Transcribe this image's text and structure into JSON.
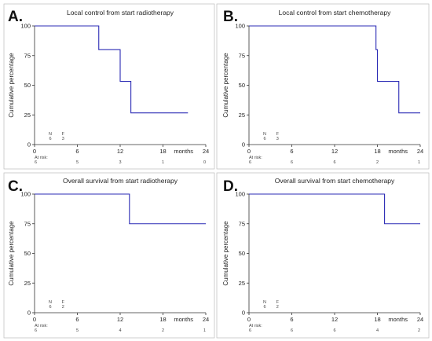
{
  "chart_data": [
    {
      "type": "line",
      "panel": "A.",
      "title": "Local control from start radiotherapy",
      "ylabel": "Cumulative percentage",
      "xunit": "months",
      "xlim": [
        0,
        24
      ],
      "ylim": [
        0,
        100
      ],
      "xticks": [
        "0",
        "6",
        "12",
        "18",
        "24"
      ],
      "yticks": [
        "0",
        "25",
        "50",
        "75",
        "100"
      ],
      "series": [
        {
          "step": true,
          "x": [
            0,
            9,
            12,
            13.5,
            21.5
          ],
          "y": [
            100,
            80,
            53.3,
            26.7,
            26.7
          ]
        }
      ],
      "legend_n": {
        "n_label": "N",
        "f_label": "F",
        "n": "6",
        "f": "3"
      },
      "at_risk": {
        "label": "At risk:",
        "values": [
          "6",
          "5",
          "3",
          "1",
          "0"
        ]
      }
    },
    {
      "type": "line",
      "panel": "B.",
      "title": "Local control from start chemotherapy",
      "ylabel": "Cumulative percentage",
      "xunit": "months",
      "xlim": [
        0,
        24
      ],
      "ylim": [
        0,
        100
      ],
      "xticks": [
        "0",
        "6",
        "12",
        "18",
        "24"
      ],
      "yticks": [
        "0",
        "25",
        "50",
        "75",
        "100"
      ],
      "series": [
        {
          "step": true,
          "x": [
            0,
            17.8,
            18,
            21,
            24
          ],
          "y": [
            100,
            80,
            53.3,
            26.7,
            26.7
          ]
        }
      ],
      "legend_n": {
        "n_label": "N",
        "f_label": "F",
        "n": "6",
        "f": "3"
      },
      "at_risk": {
        "label": "At risk:",
        "values": [
          "6",
          "6",
          "6",
          "2",
          "1"
        ]
      }
    },
    {
      "type": "line",
      "panel": "C.",
      "title": "Overall survival from start radiotherapy",
      "ylabel": "Cumulative percentage",
      "xunit": "months",
      "xlim": [
        0,
        24
      ],
      "ylim": [
        0,
        100
      ],
      "xticks": [
        "0",
        "6",
        "12",
        "18",
        "24"
      ],
      "yticks": [
        "0",
        "25",
        "50",
        "75",
        "100"
      ],
      "series": [
        {
          "step": true,
          "x": [
            0,
            13.3,
            24
          ],
          "y": [
            100,
            75,
            75
          ]
        }
      ],
      "legend_n": {
        "n_label": "N",
        "f_label": "F",
        "n": "6",
        "f": "2"
      },
      "at_risk": {
        "label": "At risk:",
        "values": [
          "6",
          "5",
          "4",
          "2",
          "1"
        ]
      }
    },
    {
      "type": "line",
      "panel": "D.",
      "title": "Overall survival from start chemotherapy",
      "ylabel": "Cumulative percentage",
      "xunit": "months",
      "xlim": [
        0,
        24
      ],
      "ylim": [
        0,
        100
      ],
      "xticks": [
        "0",
        "6",
        "12",
        "18",
        "24"
      ],
      "yticks": [
        "0",
        "25",
        "50",
        "75",
        "100"
      ],
      "series": [
        {
          "step": true,
          "x": [
            0,
            19,
            24
          ],
          "y": [
            100,
            75,
            75
          ]
        }
      ],
      "legend_n": {
        "n_label": "N",
        "f_label": "F",
        "n": "6",
        "f": "2"
      },
      "at_risk": {
        "label": "At risk:",
        "values": [
          "6",
          "6",
          "6",
          "4",
          "2"
        ]
      }
    }
  ],
  "colors": {
    "curve": "#2b2bb5",
    "axis": "#333333",
    "frame": "#bbbbbb"
  }
}
